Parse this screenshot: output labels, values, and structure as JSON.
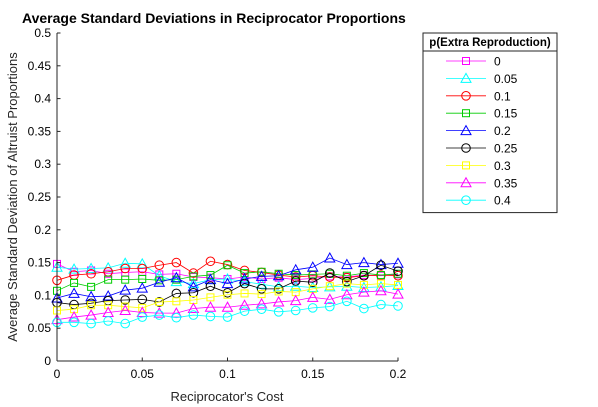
{
  "chart_data": {
    "type": "line",
    "title": "Average Standard Deviations in Reciprocator Proportions",
    "xlabel": "Reciprocator's Cost",
    "ylabel": "Average Standard Deviation of Altruist Proportions",
    "xlim": [
      0,
      0.2
    ],
    "ylim": [
      0,
      0.5
    ],
    "xticks": [
      "0",
      "0.05",
      "0.1",
      "0.15",
      "0.2"
    ],
    "yticks": [
      "0",
      "0.05",
      "0.1",
      "0.15",
      "0.2",
      "0.25",
      "0.3",
      "0.35",
      "0.4",
      "0.45",
      "0.5"
    ],
    "grid": false,
    "legend_title": "p(Extra Reproduction)",
    "legend_position": "outside-top-right",
    "x": [
      0,
      0.01,
      0.02,
      0.03,
      0.04,
      0.05,
      0.06,
      0.07,
      0.08,
      0.09,
      0.1,
      0.11,
      0.12,
      0.13,
      0.14,
      0.15,
      0.16,
      0.17,
      0.18,
      0.19,
      0.2
    ],
    "series": [
      {
        "name": "0",
        "marker": "square",
        "color": "#ff00ff",
        "values": [
          0.148,
          0.136,
          0.138,
          0.133,
          0.135,
          0.136,
          0.132,
          0.133,
          0.128,
          0.127,
          0.125,
          0.128,
          0.125,
          0.127,
          0.124,
          0.126,
          0.129,
          0.128,
          0.131,
          0.13,
          0.132
        ]
      },
      {
        "name": "0.05",
        "marker": "triangle",
        "color": "#00ffff",
        "values": [
          0.143,
          0.14,
          0.141,
          0.142,
          0.149,
          0.148,
          0.13,
          0.121,
          0.118,
          0.124,
          0.125,
          0.121,
          0.117,
          0.113,
          0.114,
          0.112,
          0.113,
          0.114,
          0.112,
          0.113,
          0.115
        ]
      },
      {
        "name": "0.1",
        "marker": "circle",
        "color": "#ff0000",
        "values": [
          0.123,
          0.131,
          0.133,
          0.136,
          0.141,
          0.141,
          0.146,
          0.15,
          0.134,
          0.152,
          0.147,
          0.138,
          0.135,
          0.131,
          0.128,
          0.13,
          0.128,
          0.127,
          0.13,
          0.131,
          0.13
        ]
      },
      {
        "name": "0.15",
        "marker": "square",
        "color": "#00cc00",
        "values": [
          0.107,
          0.119,
          0.113,
          0.124,
          0.124,
          0.125,
          0.123,
          0.124,
          0.129,
          0.131,
          0.146,
          0.134,
          0.136,
          0.133,
          0.131,
          0.132,
          0.133,
          0.13,
          0.134,
          0.131,
          0.133
        ]
      },
      {
        "name": "0.2",
        "marker": "triangle",
        "color": "#0000ff",
        "values": [
          0.096,
          0.103,
          0.098,
          0.099,
          0.108,
          0.111,
          0.12,
          0.127,
          0.113,
          0.124,
          0.118,
          0.125,
          0.129,
          0.13,
          0.139,
          0.143,
          0.157,
          0.147,
          0.15,
          0.147,
          0.149
        ]
      },
      {
        "name": "0.25",
        "marker": "circle",
        "color": "#000000",
        "values": [
          0.089,
          0.086,
          0.088,
          0.092,
          0.093,
          0.094,
          0.09,
          0.103,
          0.104,
          0.114,
          0.104,
          0.118,
          0.11,
          0.11,
          0.122,
          0.12,
          0.134,
          0.121,
          0.13,
          0.146,
          0.137
        ]
      },
      {
        "name": "0.3",
        "marker": "square",
        "color": "#ffff00",
        "values": [
          0.077,
          0.079,
          0.085,
          0.085,
          0.083,
          0.081,
          0.09,
          0.091,
          0.093,
          0.097,
          0.101,
          0.103,
          0.102,
          0.106,
          0.105,
          0.11,
          0.114,
          0.118,
          0.116,
          0.118,
          0.116
        ]
      },
      {
        "name": "0.35",
        "marker": "triangle",
        "color": "#ff00ff",
        "values": [
          0.063,
          0.067,
          0.07,
          0.074,
          0.077,
          0.074,
          0.073,
          0.073,
          0.08,
          0.082,
          0.082,
          0.085,
          0.087,
          0.09,
          0.092,
          0.097,
          0.094,
          0.101,
          0.105,
          0.107,
          0.102
        ]
      },
      {
        "name": "0.4",
        "marker": "circle",
        "color": "#00ffff",
        "values": [
          0.059,
          0.059,
          0.057,
          0.061,
          0.057,
          0.067,
          0.07,
          0.066,
          0.07,
          0.068,
          0.067,
          0.076,
          0.079,
          0.075,
          0.077,
          0.081,
          0.083,
          0.091,
          0.08,
          0.086,
          0.084
        ]
      }
    ]
  }
}
